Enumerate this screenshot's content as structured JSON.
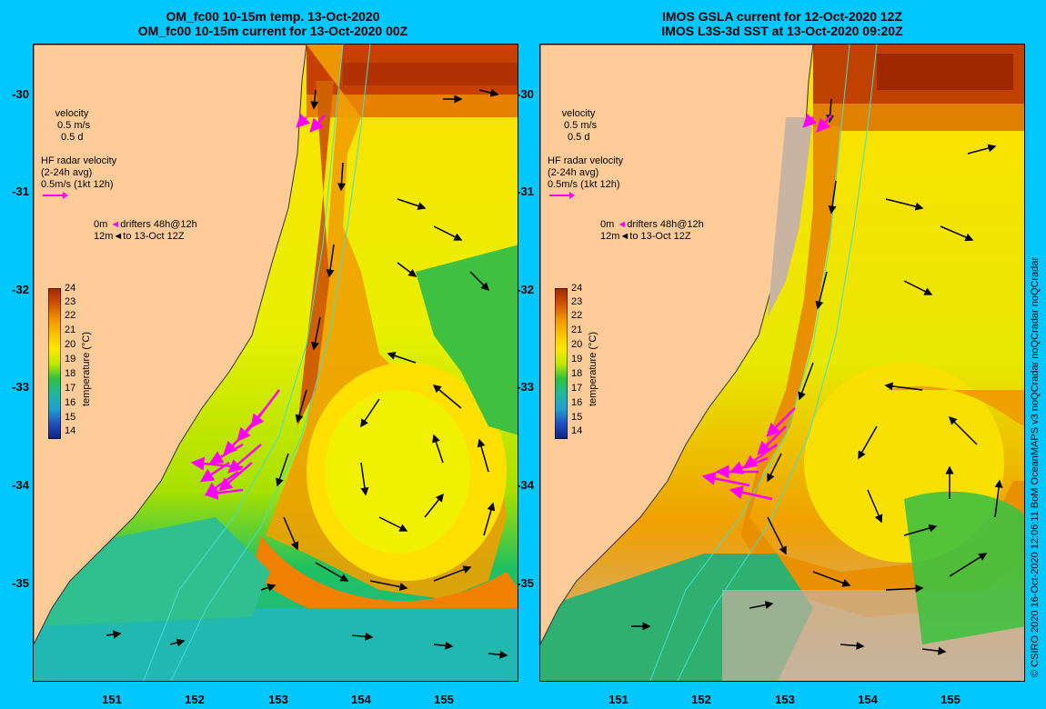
{
  "left_panel": {
    "title_line1": "OM_fc00 10-15m temp. 13-Oct-2020",
    "title_line2": "OM_fc00 10-15m current for 13-Oct-2020 00Z"
  },
  "right_panel": {
    "title_line1": "IMOS GSLA current for 12-Oct-2020 12Z",
    "title_line2": "IMOS L3S-3d SST at 13-Oct-2020 09:20Z"
  },
  "axes": {
    "y_ticks": [
      "-30",
      "-31",
      "-32",
      "-33",
      "-34",
      "-35"
    ],
    "x_ticks": [
      "151",
      "152",
      "153",
      "154",
      "155"
    ]
  },
  "legend": {
    "velocity_title": "velocity",
    "velocity_scale": "0.5 m/s",
    "velocity_days": "0.5 d",
    "hf_title": "HF radar velocity",
    "hf_avg": "(2-24h avg)",
    "hf_scale": "0.5m/s (1kt 12h)",
    "drifter_0m": "0m",
    "drifter_label": "drifters 48h@12h",
    "drifter_12m": "12m",
    "drifter_to": "to 13-Oct 12Z"
  },
  "colorbar": {
    "label": "temperature (°C)",
    "ticks": [
      "24",
      "23",
      "22",
      "21",
      "20",
      "19",
      "18",
      "17",
      "16",
      "15",
      "14"
    ]
  },
  "colors": {
    "background": "#00c8ff",
    "land": "#ffcc99",
    "hf_radar": "#ff00ff",
    "no_data": "#c8b4a0"
  },
  "side_text": "© CSIRO 2020   16-Oct-2020 12:06:11 BoM OceanMAPS v3 noQCradar noQCradar noQCradar"
}
